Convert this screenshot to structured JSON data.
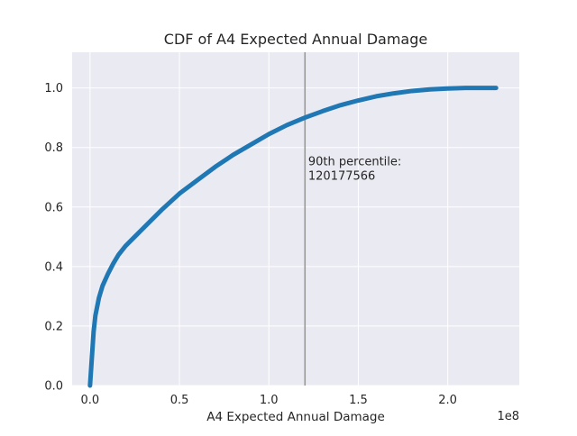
{
  "chart_data": {
    "type": "line",
    "title": "CDF of A4 Expected Annual Damage",
    "xlabel": "A4 Expected Annual Damage",
    "ylabel": "",
    "x_offset_label": "1e8",
    "xlim": [
      -0.1,
      2.4
    ],
    "ylim": [
      0.0,
      1.12
    ],
    "x_ticks": [
      0.0,
      0.5,
      1.0,
      1.5,
      2.0
    ],
    "x_tick_labels": [
      "0.0",
      "0.5",
      "1.0",
      "1.5",
      "2.0"
    ],
    "y_ticks": [
      0.0,
      0.2,
      0.4,
      0.6,
      0.8,
      1.0
    ],
    "y_tick_labels": [
      "0.0",
      "0.2",
      "0.4",
      "0.6",
      "0.8",
      "1.0"
    ],
    "grid": true,
    "series": [
      {
        "color": "#1f77b4",
        "x": [
          0.0,
          0.01,
          0.02,
          0.03,
          0.05,
          0.07,
          0.1,
          0.13,
          0.16,
          0.2,
          0.25,
          0.3,
          0.4,
          0.5,
          0.6,
          0.7,
          0.8,
          0.9,
          1.0,
          1.1,
          1.2,
          1.3,
          1.4,
          1.5,
          1.6,
          1.7,
          1.8,
          1.9,
          2.0,
          2.1,
          2.2,
          2.27
        ],
        "y": [
          0.0,
          0.09,
          0.18,
          0.235,
          0.295,
          0.335,
          0.375,
          0.41,
          0.44,
          0.47,
          0.5,
          0.53,
          0.59,
          0.645,
          0.69,
          0.735,
          0.775,
          0.81,
          0.845,
          0.875,
          0.9,
          0.922,
          0.942,
          0.958,
          0.972,
          0.982,
          0.99,
          0.995,
          0.998,
          1.0,
          1.0,
          1.0
        ]
      }
    ],
    "vline": {
      "x": 1.20177566,
      "color": "#999999"
    },
    "annotation": {
      "line1": "90th percentile:",
      "line2": "120177566",
      "x": 1.22,
      "y": 0.74
    }
  }
}
